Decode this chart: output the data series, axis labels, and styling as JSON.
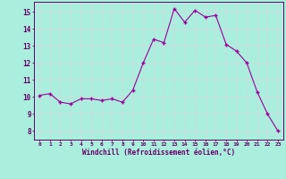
{
  "x": [
    0,
    1,
    2,
    3,
    4,
    5,
    6,
    7,
    8,
    9,
    10,
    11,
    12,
    13,
    14,
    15,
    16,
    17,
    18,
    19,
    20,
    21,
    22,
    23
  ],
  "y": [
    10.1,
    10.2,
    9.7,
    9.6,
    9.9,
    9.9,
    9.8,
    9.9,
    9.7,
    10.4,
    12.0,
    13.4,
    13.2,
    15.2,
    14.4,
    15.1,
    14.7,
    14.8,
    13.1,
    12.7,
    12.0,
    10.3,
    9.0,
    8.0
  ],
  "line_color": "#990099",
  "marker_color": "#990099",
  "bg_color": "#aaeedd",
  "grid_color": "#ccdddd",
  "xlabel": "Windchill (Refroidissement éolien,°C)",
  "xlabel_color": "#660066",
  "tick_color": "#660066",
  "ylim": [
    7.5,
    15.6
  ],
  "yticks": [
    8,
    9,
    10,
    11,
    12,
    13,
    14,
    15
  ],
  "xlim": [
    -0.5,
    23.5
  ],
  "xticks": [
    0,
    1,
    2,
    3,
    4,
    5,
    6,
    7,
    8,
    9,
    10,
    11,
    12,
    13,
    14,
    15,
    16,
    17,
    18,
    19,
    20,
    21,
    22,
    23
  ]
}
